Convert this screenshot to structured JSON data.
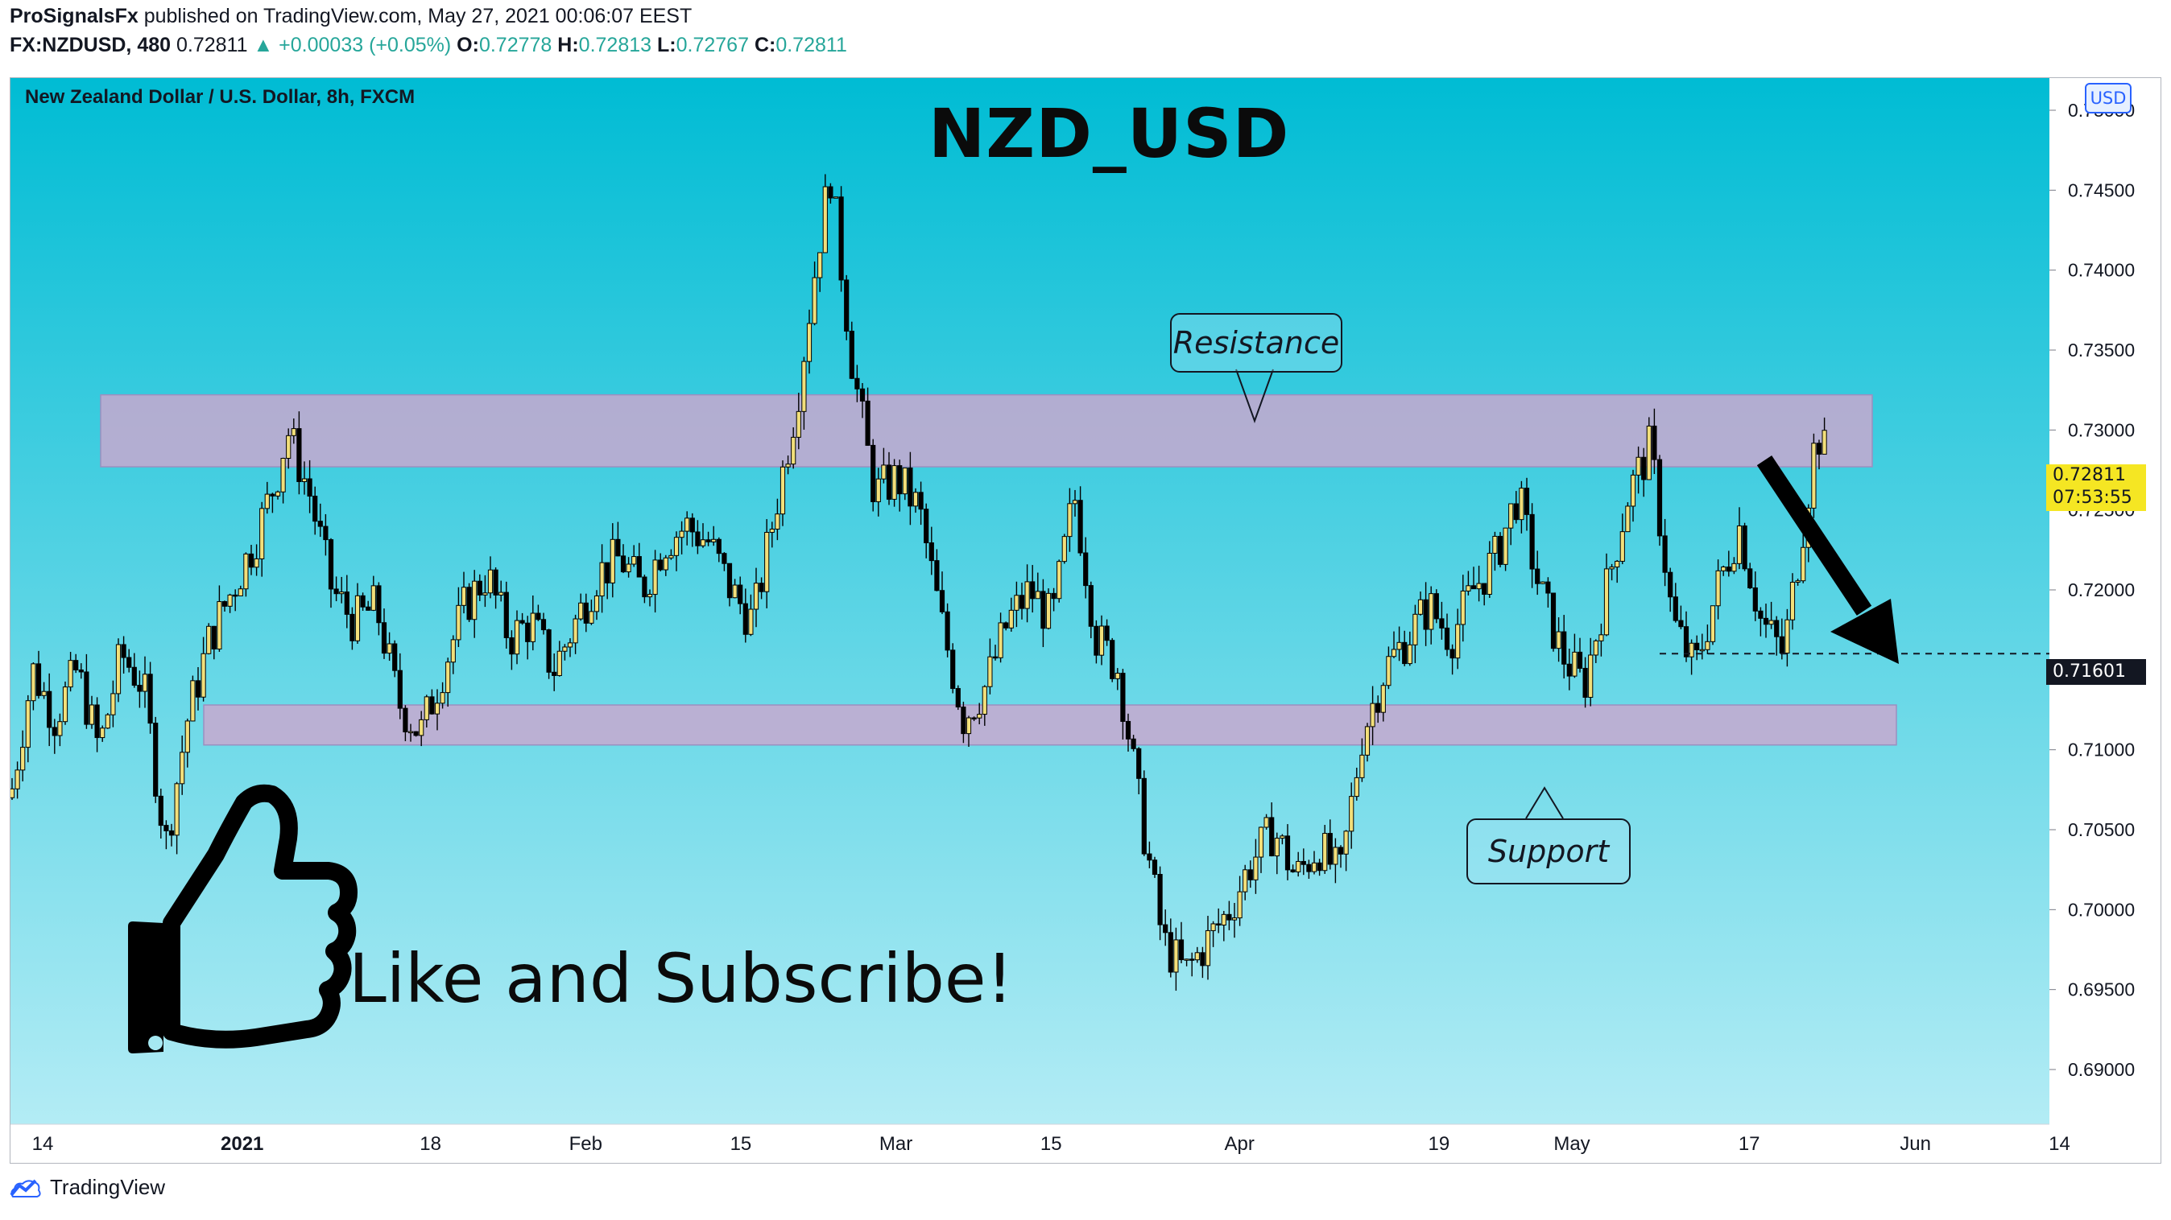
{
  "header": {
    "publisher": "ProSignalsFx",
    "published_text": " published on TradingView.com, May 27, 2021 00:06:07 EEST",
    "symbol": "FX:NZDUSD, 480",
    "last": "0.72811",
    "change": "▲ +0.00033 (+0.05%)",
    "o_label": "O:",
    "o_value": "0.72778",
    "h_label": "H:",
    "h_value": "0.72813",
    "l_label": "L:",
    "l_value": "0.72767",
    "c_label": "C:",
    "c_value": "0.72811"
  },
  "chart_meta": {
    "pair_label": "New Zealand Dollar / U.S. Dollar, 8h, FXCM",
    "title": "NZD_USD",
    "currency": "USD",
    "current_price": "0.72811",
    "countdown": "07:53:55",
    "target_price": "0.71601",
    "resistance_label": "Resistance",
    "support_label": "Support",
    "cta_text": "Like and Subscribe!"
  },
  "footer": {
    "brand": "TradingView"
  },
  "colors": {
    "bg_top": "#00bcd4",
    "bg_bottom": "#b3ecf5",
    "zone": "#c8a8cf",
    "candle_up": "#f2df7a",
    "candle_down": "#000000",
    "arrow": "#000000",
    "price_badge": "#f5e623"
  },
  "chart_data": {
    "type": "candlestick",
    "title": "NZD_USD",
    "ylim": [
      0.69,
      0.75
    ],
    "y_ticks": [
      "0.75000",
      "0.74500",
      "0.74000",
      "0.73500",
      "0.73000",
      "0.72500",
      "0.72000",
      "0.71500",
      "0.71000",
      "0.70500",
      "0.70000",
      "0.69500",
      "0.69000"
    ],
    "x_ticks": [
      "14",
      "2021",
      "18",
      "Feb",
      "15",
      "Mar",
      "15",
      "Apr",
      "19",
      "May",
      "17",
      "Jun",
      "14"
    ],
    "x_range": [
      "2020-12-14",
      "2021-06-16"
    ],
    "resistance_zone": [
      0.7277,
      0.7322
    ],
    "support_zone": [
      0.7103,
      0.7128
    ],
    "projection_target": 0.71601,
    "close_path": [
      [
        "2020-12-14",
        0.707
      ],
      [
        "2020-12-16",
        0.715
      ],
      [
        "2020-12-18",
        0.712
      ],
      [
        "2020-12-20",
        0.715
      ],
      [
        "2020-12-22",
        0.71
      ],
      [
        "2020-12-24",
        0.716
      ],
      [
        "2020-12-26",
        0.714
      ],
      [
        "2020-12-28",
        0.704
      ],
      [
        "2020-12-30",
        0.712
      ],
      [
        "2021-01-01",
        0.717
      ],
      [
        "2021-01-03",
        0.72
      ],
      [
        "2021-01-05",
        0.723
      ],
      [
        "2021-01-07",
        0.727
      ],
      [
        "2021-01-08",
        0.73
      ],
      [
        "2021-01-10",
        0.726
      ],
      [
        "2021-01-12",
        0.72
      ],
      [
        "2021-01-14",
        0.718
      ],
      [
        "2021-01-16",
        0.719
      ],
      [
        "2021-01-18",
        0.713
      ],
      [
        "2021-01-20",
        0.711
      ],
      [
        "2021-01-22",
        0.715
      ],
      [
        "2021-01-24",
        0.719
      ],
      [
        "2021-01-26",
        0.721
      ],
      [
        "2021-01-28",
        0.717
      ],
      [
        "2021-01-30",
        0.718
      ],
      [
        "2021-02-01",
        0.715
      ],
      [
        "2021-02-03",
        0.718
      ],
      [
        "2021-02-05",
        0.721
      ],
      [
        "2021-02-07",
        0.722
      ],
      [
        "2021-02-09",
        0.72
      ],
      [
        "2021-02-11",
        0.723
      ],
      [
        "2021-02-13",
        0.724
      ],
      [
        "2021-02-15",
        0.723
      ],
      [
        "2021-02-17",
        0.72
      ],
      [
        "2021-02-19",
        0.718
      ],
      [
        "2021-02-21",
        0.725
      ],
      [
        "2021-02-23",
        0.732
      ],
      [
        "2021-02-25",
        0.742
      ],
      [
        "2021-02-26",
        0.746
      ],
      [
        "2021-02-28",
        0.734
      ],
      [
        "2021-03-02",
        0.726
      ],
      [
        "2021-03-04",
        0.727
      ],
      [
        "2021-03-06",
        0.725
      ],
      [
        "2021-03-08",
        0.718
      ],
      [
        "2021-03-10",
        0.712
      ],
      [
        "2021-03-12",
        0.714
      ],
      [
        "2021-03-14",
        0.718
      ],
      [
        "2021-03-16",
        0.72
      ],
      [
        "2021-03-18",
        0.718
      ],
      [
        "2021-03-20",
        0.726
      ],
      [
        "2021-03-22",
        0.717
      ],
      [
        "2021-03-24",
        0.715
      ],
      [
        "2021-03-26",
        0.706
      ],
      [
        "2021-03-28",
        0.698
      ],
      [
        "2021-03-30",
        0.696
      ],
      [
        "2021-04-01",
        0.698
      ],
      [
        "2021-04-03",
        0.7
      ],
      [
        "2021-04-05",
        0.703
      ],
      [
        "2021-04-07",
        0.705
      ],
      [
        "2021-04-09",
        0.702
      ],
      [
        "2021-04-11",
        0.704
      ],
      [
        "2021-04-13",
        0.702
      ],
      [
        "2021-04-15",
        0.711
      ],
      [
        "2021-04-17",
        0.715
      ],
      [
        "2021-04-19",
        0.717
      ],
      [
        "2021-04-21",
        0.719
      ],
      [
        "2021-04-23",
        0.717
      ],
      [
        "2021-04-25",
        0.72
      ],
      [
        "2021-04-27",
        0.722
      ],
      [
        "2021-04-29",
        0.726
      ],
      [
        "2021-05-01",
        0.72
      ],
      [
        "2021-05-03",
        0.716
      ],
      [
        "2021-05-05",
        0.714
      ],
      [
        "2021-05-07",
        0.72
      ],
      [
        "2021-05-09",
        0.726
      ],
      [
        "2021-05-11",
        0.729
      ],
      [
        "2021-05-13",
        0.718
      ],
      [
        "2021-05-15",
        0.715
      ],
      [
        "2021-05-17",
        0.72
      ],
      [
        "2021-05-19",
        0.724
      ],
      [
        "2021-05-21",
        0.718
      ],
      [
        "2021-05-23",
        0.716
      ],
      [
        "2021-05-25",
        0.725
      ],
      [
        "2021-05-26",
        0.73
      ],
      [
        "2021-05-27",
        0.72811
      ]
    ]
  }
}
